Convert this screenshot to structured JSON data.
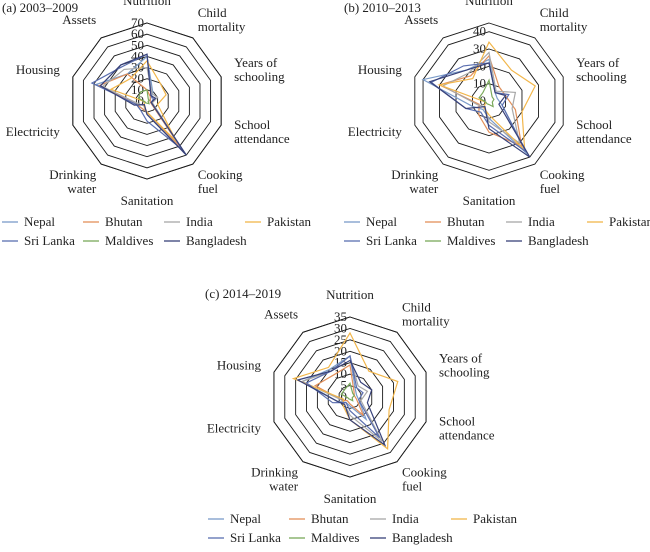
{
  "colors": {
    "Nepal": "#7b9cc9",
    "Bhutan": "#e3905a",
    "India": "#a8a8a8",
    "Pakistan": "#f2b64a",
    "Sri Lanka": "#5b6fb0",
    "Maldives": "#7aa95a",
    "Bangladesh": "#38427a",
    "grid": "#1a1a1a"
  },
  "chart_data": [
    {
      "type": "radar",
      "title": "(a) 2003–2009",
      "axes": [
        "Nutrition",
        "Child\nmortality",
        "Years of\nschooling",
        "School\nattendance",
        "Cooking\nfuel",
        "Sanitation",
        "Drinking\nwater",
        "Electricity",
        "Housing",
        "Assets"
      ],
      "ticks": [
        0,
        10,
        20,
        30,
        40,
        50,
        60,
        70
      ],
      "rmax": 70,
      "legend": [
        "Nepal",
        "Bhutan",
        "India",
        "Pakistan",
        "Sri Lanka",
        "Maldives",
        "Bangladesh"
      ],
      "series": [
        {
          "name": "Nepal",
          "values": [
            40,
            9,
            3,
            3,
            60,
            10,
            8,
            10,
            48,
            30
          ]
        },
        {
          "name": "Bhutan",
          "values": [
            10,
            5,
            3,
            3,
            50,
            10,
            8,
            10,
            45,
            30
          ]
        },
        {
          "name": "India",
          "values": [
            30,
            8,
            10,
            5,
            58,
            12,
            5,
            8,
            42,
            35
          ]
        },
        {
          "name": "Pakistan",
          "values": [
            36,
            20,
            18,
            10,
            45,
            10,
            5,
            2,
            34,
            25
          ]
        },
        {
          "name": "Sri Lanka",
          "values": [
            42,
            6,
            6,
            4,
            54,
            18,
            10,
            10,
            52,
            38
          ]
        },
        {
          "name": "Maldives",
          "values": [
            10,
            2,
            2,
            1,
            3,
            2,
            2,
            2,
            8,
            10
          ]
        },
        {
          "name": "Bangladesh",
          "values": [
            42,
            6,
            8,
            4,
            60,
            12,
            4,
            12,
            44,
            40
          ]
        }
      ]
    },
    {
      "type": "radar",
      "title": "(b) 2010–2013",
      "axes": [
        "Nutrition",
        "Child\nmortality",
        "Years of\nschooling",
        "School\nattendance",
        "Cooking\nfuel",
        "Sanitation",
        "Drinking\nwater",
        "Electricity",
        "Housing",
        "Assets"
      ],
      "ticks": [
        0,
        10,
        20,
        30,
        40
      ],
      "rmax": 45,
      "legend": [
        "Nepal",
        "Bhutan",
        "India",
        "Pakistan",
        "Sri Lanka",
        "Maldives",
        "Bangladesh"
      ],
      "series": [
        {
          "name": "Nepal",
          "values": [
            24,
            6,
            5,
            8,
            38,
            10,
            6,
            10,
            40,
            22
          ]
        },
        {
          "name": "Bhutan",
          "values": [
            26,
            10,
            10,
            16,
            32,
            18,
            10,
            6,
            30,
            18
          ]
        },
        {
          "name": "India",
          "values": [
            28,
            7,
            16,
            14,
            30,
            12,
            4,
            7,
            28,
            20
          ]
        },
        {
          "name": "Pakistan",
          "values": [
            34,
            22,
            28,
            20,
            35,
            8,
            5,
            2,
            30,
            16
          ]
        },
        {
          "name": "Sri Lanka",
          "values": [
            22,
            6,
            12,
            8,
            36,
            14,
            8,
            14,
            35,
            25
          ]
        },
        {
          "name": "Maldives",
          "values": [
            12,
            3,
            3,
            2,
            4,
            2,
            2,
            2,
            6,
            6
          ]
        },
        {
          "name": "Bangladesh",
          "values": [
            22,
            6,
            10,
            6,
            40,
            16,
            4,
            14,
            36,
            22
          ]
        }
      ]
    },
    {
      "type": "radar",
      "title": "(c) 2014–2019",
      "axes": [
        "Nutrition",
        "Child\nmortality",
        "Years of\nschooling",
        "School\nattendance",
        "Cooking\nfuel",
        "Sanitation",
        "Drinking\nwater",
        "Electricity",
        "Housing",
        "Assets"
      ],
      "ticks": [
        0,
        5,
        10,
        15,
        20,
        25,
        30,
        35
      ],
      "rmax": 35,
      "legend": [
        "Nepal",
        "Bhutan",
        "India",
        "Pakistan",
        "Sri Lanka",
        "Maldives",
        "Bangladesh"
      ],
      "series": [
        {
          "name": "Nepal",
          "values": [
            18,
            4,
            3,
            4,
            12,
            4,
            3,
            6,
            22,
            15
          ]
        },
        {
          "name": "Bhutan",
          "values": [
            14,
            3,
            2,
            3,
            10,
            3,
            2,
            4,
            16,
            12
          ]
        },
        {
          "name": "India",
          "values": [
            18,
            6,
            8,
            5,
            24,
            8,
            4,
            4,
            22,
            14
          ]
        },
        {
          "name": "Pakistan",
          "values": [
            28,
            14,
            22,
            18,
            28,
            10,
            5,
            3,
            26,
            16
          ]
        },
        {
          "name": "Sri Lanka",
          "values": [
            18,
            5,
            6,
            4,
            22,
            6,
            3,
            8,
            20,
            14
          ]
        },
        {
          "name": "Maldives",
          "values": [
            6,
            2,
            2,
            1,
            2,
            1,
            1,
            1,
            4,
            4
          ]
        },
        {
          "name": "Bangladesh",
          "values": [
            16,
            8,
            10,
            8,
            26,
            10,
            4,
            6,
            24,
            14
          ]
        }
      ]
    }
  ]
}
